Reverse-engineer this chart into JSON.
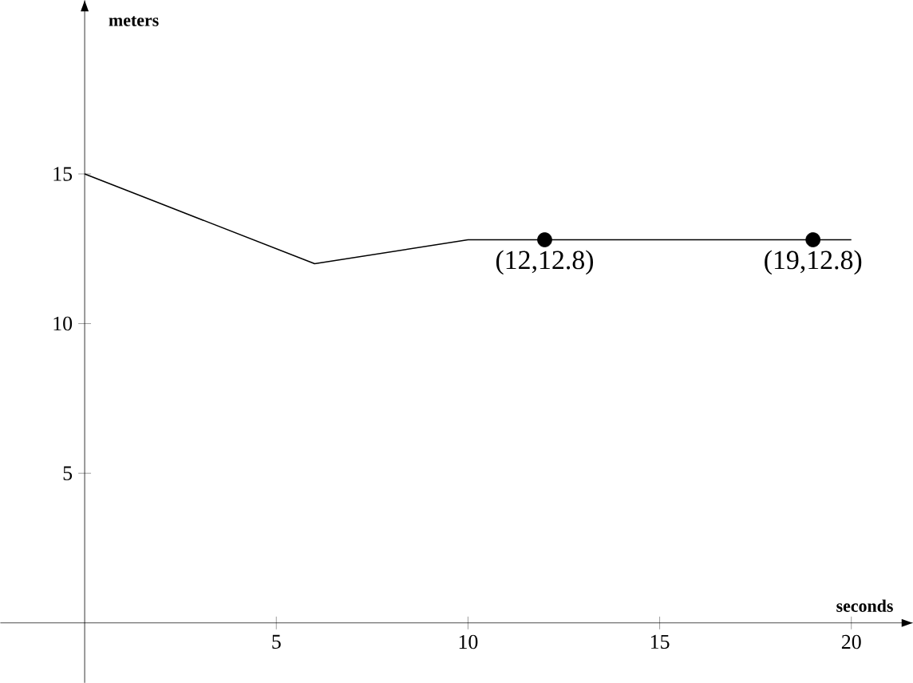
{
  "chart_data": {
    "type": "line",
    "xlabel": "seconds",
    "ylabel": "meters",
    "xlim": [
      -2.2,
      21.6
    ],
    "ylim": [
      -2,
      20.8
    ],
    "xticks": [
      5,
      10,
      15,
      20
    ],
    "yticks": [
      5,
      10,
      15
    ],
    "grid": false,
    "series": [
      {
        "type": "line",
        "color": "#000000",
        "marker": "none",
        "line_style": "solid",
        "x": [
          0,
          6,
          10,
          20
        ],
        "values": [
          15,
          12,
          12.8,
          12.8
        ]
      },
      {
        "type": "scatter",
        "color": "#000000",
        "marker": "circle",
        "x": [
          12,
          19
        ],
        "values": [
          12.8,
          12.8
        ]
      }
    ],
    "annotations": [
      {
        "text": "(12,12.8)",
        "x": 12,
        "y": 12.8
      },
      {
        "text": "(19,12.8)",
        "x": 19,
        "y": 12.8
      }
    ]
  }
}
